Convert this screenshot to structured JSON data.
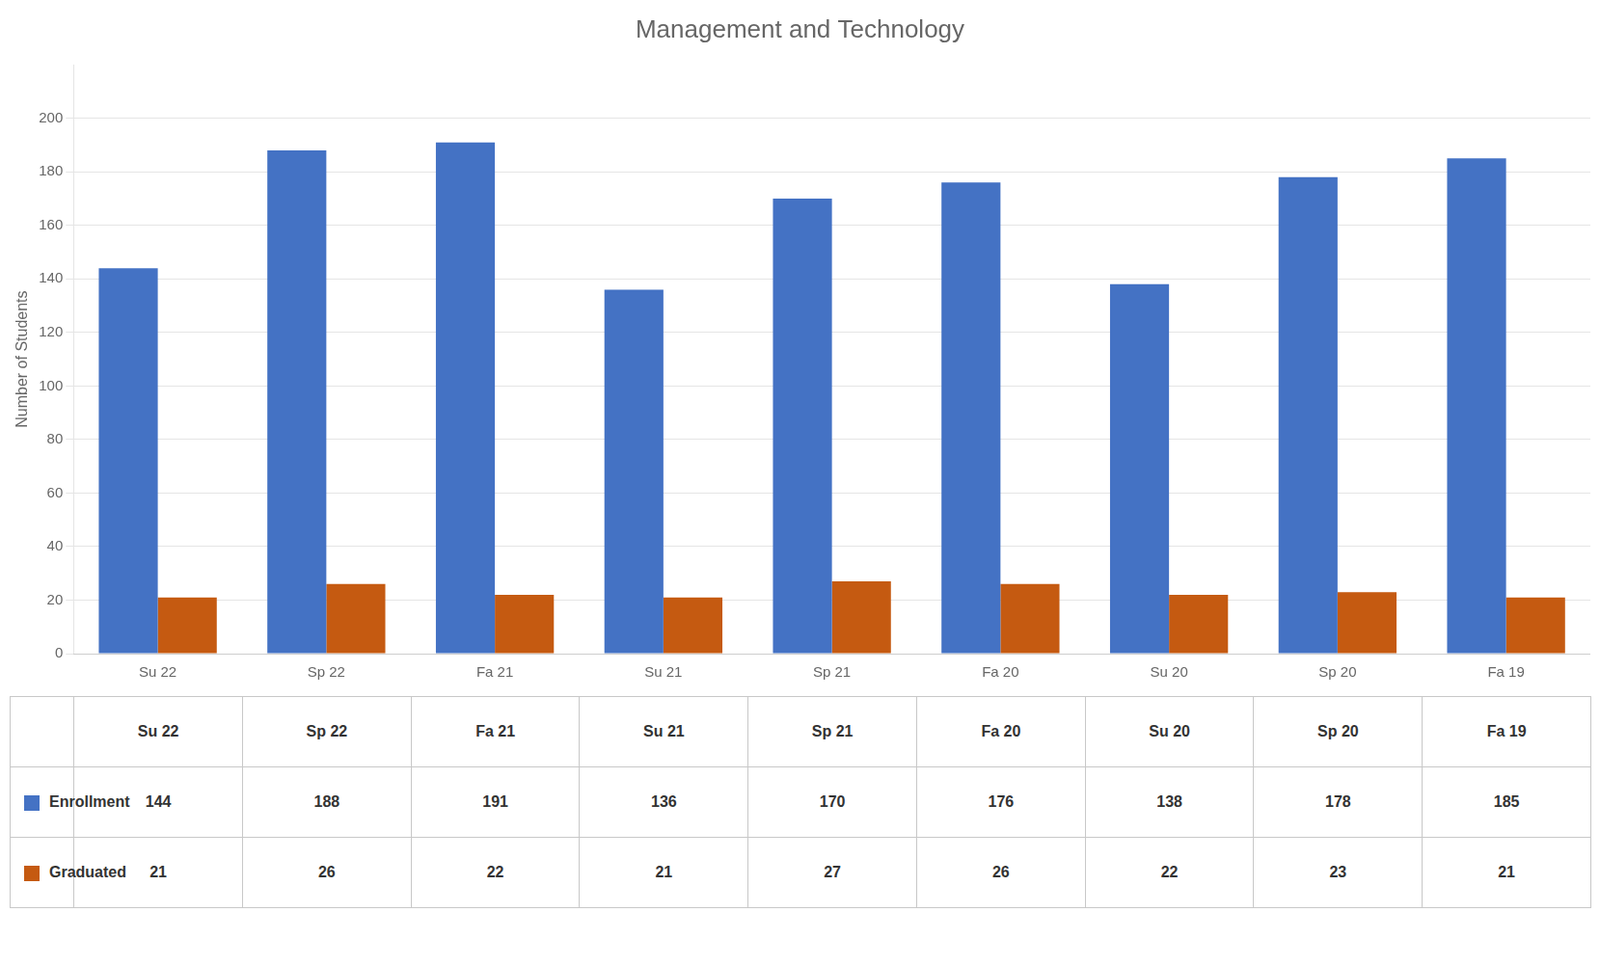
{
  "chart_data": {
    "type": "bar",
    "title": "Management and Technology",
    "ylabel": "Number of Students",
    "categories": [
      "Su 22",
      "Sp 22",
      "Fa 21",
      "Su 21",
      "Sp 21",
      "Fa 20",
      "Su 20",
      "Sp 20",
      "Fa 19"
    ],
    "series": [
      {
        "name": "Enrollment",
        "color": "#4472C4",
        "values": [
          144,
          188,
          191,
          136,
          170,
          176,
          138,
          178,
          185
        ]
      },
      {
        "name": "Graduated",
        "color": "#C55A11",
        "values": [
          21,
          26,
          22,
          21,
          27,
          26,
          22,
          23,
          21
        ]
      }
    ],
    "ylim": [
      0,
      220
    ],
    "yticks": [
      0,
      20,
      40,
      60,
      80,
      100,
      120,
      140,
      160,
      180,
      200
    ],
    "grid": true
  }
}
